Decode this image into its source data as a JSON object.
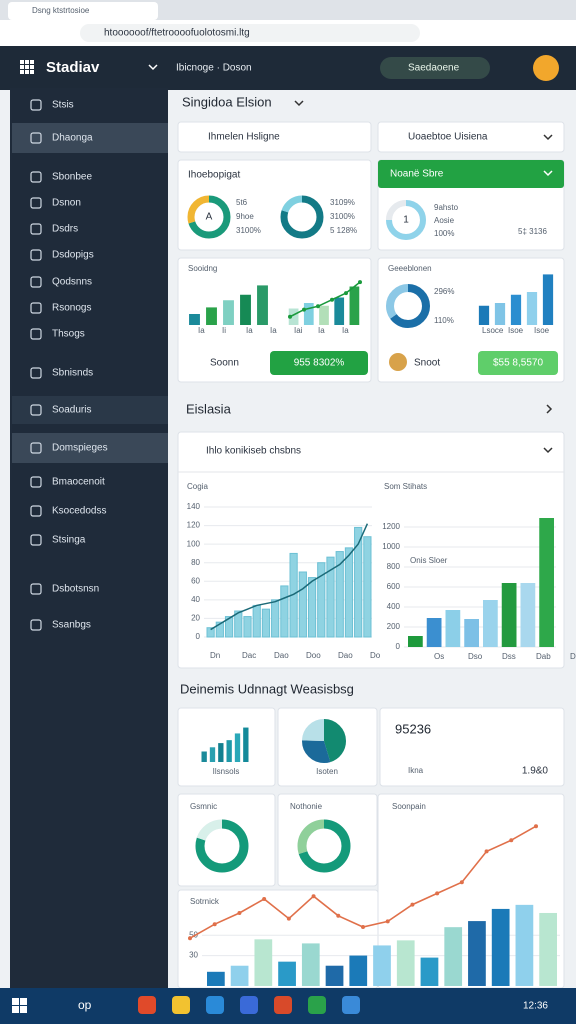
{
  "browser": {
    "tab_title": "Dsng ktstrtosioe",
    "url": "htoooooof/ftetroooofuolotosmi.ltg"
  },
  "header": {
    "logo": "Stadiav",
    "menu": "Ibicnoge · Doson",
    "account": "Saedaoene"
  },
  "sidebar": {
    "items": [
      "Stsis",
      "Dhaonga",
      "Sbonbee",
      "Dsnon",
      "Dsdrs",
      "Dsdopigs",
      "Qodsnns",
      "Rsonogs",
      "Thsogs",
      "Sbnisnds",
      "Soaduris",
      "Domspieges",
      "Bmaocenoit",
      "Ksocedodss",
      "Stsinga",
      "Dsbotsnsn",
      "Ssanbgs"
    ]
  },
  "section1": {
    "title": "Singidoa Elsion",
    "search": "Ihmelen Hsligne",
    "select": "Uoaebtoe Uisiena"
  },
  "card_a": {
    "title": "Ihoebopigat",
    "donut1": [
      70,
      30
    ],
    "center1": "A",
    "labels1": [
      "5t6",
      "9hoe",
      "3100%"
    ],
    "donut2": [
      80,
      20
    ],
    "labels2": [
      "3109%",
      "3100%",
      "5 128%"
    ]
  },
  "card_b": {
    "title": "Noanë Sbre",
    "donut": [
      75,
      25
    ],
    "center": "1",
    "labels": [
      "9ahsto",
      "Aosie",
      "100%"
    ],
    "footer": "5‡ 3136"
  },
  "card_c": {
    "title": "Sooidng",
    "bars": [
      20,
      32,
      45,
      55,
      72
    ],
    "bars2": [
      30,
      40,
      35,
      50,
      70
    ],
    "line": [
      15,
      28,
      34,
      46,
      58,
      78
    ],
    "xlabels": [
      "Ia",
      "Ii",
      "Ia",
      "Ia",
      "Iai",
      "Ia",
      "Ia"
    ],
    "footer": "Soonn",
    "button": "955 8302%"
  },
  "card_d": {
    "title": "Geeeblonen",
    "donut": [
      65,
      35
    ],
    "labels": [
      "296%",
      "110%"
    ],
    "bars": [
      35,
      40,
      55,
      60,
      92
    ],
    "xlabels": [
      "Lsoce",
      "Isoe",
      "Isoe"
    ],
    "footer": "Snoot",
    "button": "$55 8,5570"
  },
  "section2": {
    "title": "Eislasia",
    "select": "Ihlo konikiseb chsbns"
  },
  "chart_left": {
    "title": "Cogia",
    "ylim": [
      0,
      140
    ],
    "yticks": [
      0,
      20,
      40,
      60,
      80,
      100,
      120,
      140
    ],
    "bars": [
      10,
      16,
      22,
      28,
      22,
      34,
      30,
      40,
      55,
      90,
      70,
      64,
      80,
      86,
      92,
      96,
      118,
      108
    ],
    "line": [
      8,
      14,
      20,
      26,
      30,
      34,
      36,
      38,
      42,
      46,
      52,
      60,
      66,
      72,
      78,
      88,
      100,
      122
    ],
    "xlabels": [
      "Dn",
      "Dac",
      "Dao",
      "Doo",
      "Dao",
      "Do"
    ]
  },
  "chart_right": {
    "title": "Som Stihats",
    "subtitle": "Onis Sloer",
    "ylim": [
      0,
      1400
    ],
    "yticks": [
      0,
      200,
      400,
      600,
      800,
      1000,
      1200
    ],
    "bars": [
      110,
      290,
      370,
      280,
      470,
      640,
      640,
      1290
    ],
    "colors": [
      "#1e9a3c",
      "#3b8fd0",
      "#8ccfe8",
      "#7dc0e6",
      "#9ad3ec",
      "#239a3e",
      "#a9d8ee",
      "#2ea84a"
    ],
    "xlabels": [
      "Os",
      "Dso",
      "Dss",
      "Dab",
      "Dso"
    ]
  },
  "section3": {
    "title": "Deinemis Udnnagt Weasisbsg"
  },
  "tile1": {
    "bars": [
      25,
      35,
      45,
      52,
      68,
      82
    ],
    "label": "Ilsnsols"
  },
  "tile2": {
    "pie": [
      45,
      30,
      25
    ],
    "label": "Isoten"
  },
  "tile3": {
    "value": "95236",
    "label": "Ikna",
    "side": "1.9&0"
  },
  "tile4": {
    "title": "Gsmnic",
    "donut": [
      80,
      20
    ]
  },
  "tile5": {
    "title": "Nothonie",
    "donut": [
      70,
      30
    ]
  },
  "trend": {
    "title": "Soonpain",
    "line": [
      12,
      22,
      30,
      40,
      26,
      42,
      28,
      20,
      24,
      36,
      44,
      52,
      74,
      82,
      92
    ]
  },
  "bottom": {
    "title": "Sotrnick",
    "ylim": [
      0,
      70
    ],
    "yticks": [
      30,
      50
    ],
    "bars": [
      14,
      20,
      46,
      24,
      42,
      20,
      30,
      40,
      45,
      28,
      58,
      64,
      76,
      80,
      72
    ]
  },
  "taskbar": {
    "search": "op",
    "clock": "12:36"
  }
}
